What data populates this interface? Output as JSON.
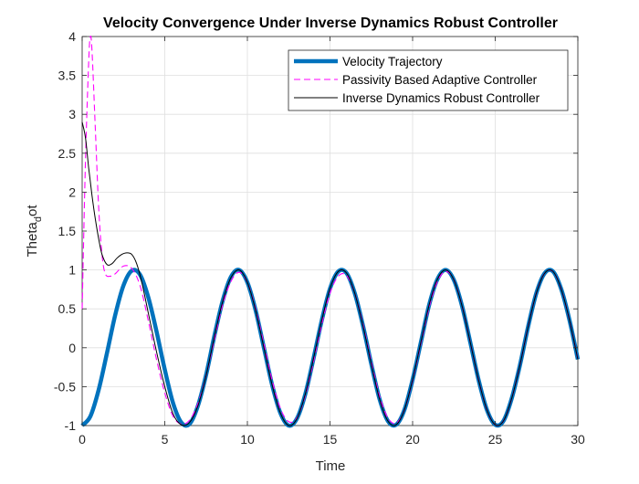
{
  "chart_data": {
    "type": "line",
    "title": "Velocity Convergence Under Inverse Dynamics Robust Controller",
    "xlabel": "Time",
    "ylabel_main": "Theta",
    "ylabel_sub": "d",
    "ylabel_tail": "ot",
    "xlim": [
      0,
      30
    ],
    "ylim": [
      -1,
      4
    ],
    "xticks": [
      "0",
      "5",
      "10",
      "15",
      "20",
      "25",
      "30"
    ],
    "yticks": [
      "-1",
      "-0.5",
      "0",
      "0.5",
      "1",
      "1.5",
      "2",
      "2.5",
      "3",
      "3.5",
      "4"
    ],
    "grid": true,
    "legend_position": "top-right",
    "series": [
      {
        "name": "Velocity Trajectory",
        "color": "#0072BD",
        "style": "solid-thick",
        "x": [
          0,
          0.5,
          1.0,
          1.5,
          2.0,
          2.5,
          3.0,
          3.5,
          4.0,
          4.5,
          5.0,
          5.5,
          6.0,
          6.5,
          7.0,
          7.5,
          8.0,
          8.5,
          9.0,
          9.5,
          10.0,
          10.5,
          11.0,
          11.5,
          12.0,
          12.5,
          13.0,
          13.5,
          14.0,
          14.5,
          15.0,
          15.5,
          16.0,
          16.5,
          17.0,
          17.5,
          18.0,
          18.5,
          19.0,
          19.5,
          20.0,
          20.5,
          21.0,
          21.5,
          22.0,
          22.5,
          23.0,
          23.5,
          24.0,
          24.5,
          25.0,
          25.5,
          26.0,
          26.5,
          27.0,
          27.5,
          28.0,
          28.5,
          29.0,
          29.5,
          30.0
        ],
        "values": [
          -1.0,
          -0.88,
          -0.54,
          -0.07,
          0.42,
          0.8,
          0.99,
          0.94,
          0.65,
          0.21,
          -0.28,
          -0.71,
          -0.96,
          -0.98,
          -0.75,
          -0.35,
          0.15,
          0.6,
          0.91,
          1.0,
          0.84,
          0.48,
          0.0,
          -0.48,
          -0.84,
          -1.0,
          -0.91,
          -0.6,
          -0.14,
          0.35,
          0.76,
          0.98,
          0.96,
          0.7,
          0.28,
          -0.21,
          -0.66,
          -0.94,
          -0.99,
          -0.8,
          -0.41,
          0.07,
          0.55,
          0.88,
          1.0,
          0.87,
          0.53,
          0.06,
          -0.42,
          -0.8,
          -0.99,
          -0.94,
          -0.65,
          -0.22,
          0.28,
          0.71,
          0.96,
          0.98,
          0.75,
          0.35,
          -0.15
        ]
      },
      {
        "name": "Passivity Based Adaptive Controller",
        "color": "#FF00FF",
        "style": "dashed",
        "x": [
          0,
          0.2,
          0.4,
          0.5,
          0.6,
          0.8,
          1.0,
          1.2,
          1.4,
          1.7,
          2.0,
          2.5,
          3.0,
          3.5,
          4.0,
          4.5,
          5.0,
          5.5,
          6.0,
          6.5,
          7.0,
          7.5,
          8.0,
          8.5,
          9.0,
          9.5,
          10.0,
          10.5,
          11.0,
          11.5,
          12.0,
          12.5,
          13.0,
          13.5,
          14.0,
          14.5,
          15.0,
          15.5,
          16.0,
          16.5,
          17.0,
          17.5,
          18.0,
          18.5,
          19.0,
          19.5,
          20.0,
          20.5,
          21.0,
          21.5,
          22.0,
          22.5,
          23.0,
          23.5,
          24.0,
          24.5,
          25.0,
          25.5,
          26.0,
          26.5,
          27.0,
          27.5,
          28.0,
          28.5,
          29.0,
          29.5,
          30.0
        ],
        "values": [
          0.5,
          2.4,
          3.7,
          4.0,
          3.8,
          2.8,
          1.8,
          1.2,
          0.95,
          0.92,
          0.95,
          1.05,
          1.02,
          0.8,
          0.35,
          -0.15,
          -0.58,
          -0.88,
          -0.98,
          -0.93,
          -0.72,
          -0.36,
          0.1,
          0.55,
          0.85,
          0.97,
          0.84,
          0.5,
          0.05,
          -0.42,
          -0.78,
          -0.95,
          -0.9,
          -0.62,
          -0.18,
          0.3,
          0.7,
          0.92,
          0.93,
          0.7,
          0.3,
          -0.18,
          -0.62,
          -0.9,
          -0.97,
          -0.8,
          -0.42,
          0.05,
          0.52,
          0.85,
          0.98,
          0.87,
          0.53,
          0.06,
          -0.42,
          -0.8,
          -0.99,
          -0.94,
          -0.65,
          -0.22,
          0.28,
          0.71,
          0.96,
          0.98,
          0.75,
          0.35,
          -0.15
        ]
      },
      {
        "name": "Inverse Dynamics Robust Controller",
        "color": "#000000",
        "style": "solid-thin",
        "x": [
          0,
          0.2,
          0.4,
          0.6,
          0.8,
          1.0,
          1.2,
          1.5,
          1.8,
          2.1,
          2.4,
          2.7,
          3.0,
          3.3,
          3.6,
          4.0,
          4.5,
          5.0,
          5.5,
          6.0,
          6.5,
          7.0,
          7.5,
          8.0,
          8.5,
          9.0,
          9.5,
          10.0,
          10.5,
          11.0,
          11.5,
          12.0,
          12.5,
          13.0,
          13.5,
          14.0,
          14.5,
          15.0,
          15.5,
          16.0,
          16.5,
          17.0,
          17.5,
          18.0,
          18.5,
          19.0,
          19.5,
          20.0,
          20.5,
          21.0,
          21.5,
          22.0,
          22.5,
          23.0,
          23.5,
          24.0,
          24.5,
          25.0,
          25.5,
          26.0,
          26.5,
          27.0,
          27.5,
          28.0,
          28.5,
          29.0,
          29.5,
          30.0
        ],
        "values": [
          2.9,
          2.7,
          2.3,
          1.95,
          1.65,
          1.4,
          1.2,
          1.07,
          1.08,
          1.15,
          1.2,
          1.22,
          1.2,
          1.08,
          0.85,
          0.45,
          -0.05,
          -0.5,
          -0.85,
          -0.99,
          -0.96,
          -0.75,
          -0.36,
          0.14,
          0.59,
          0.9,
          1.0,
          0.84,
          0.48,
          0.0,
          -0.48,
          -0.84,
          -1.0,
          -0.91,
          -0.6,
          -0.14,
          0.35,
          0.76,
          0.98,
          0.96,
          0.7,
          0.28,
          -0.21,
          -0.66,
          -0.94,
          -0.99,
          -0.8,
          -0.41,
          0.07,
          0.55,
          0.88,
          1.0,
          0.87,
          0.53,
          0.06,
          -0.42,
          -0.8,
          -0.99,
          -0.94,
          -0.65,
          -0.22,
          0.28,
          0.71,
          0.96,
          0.98,
          0.75,
          0.35,
          -0.15
        ]
      }
    ]
  }
}
